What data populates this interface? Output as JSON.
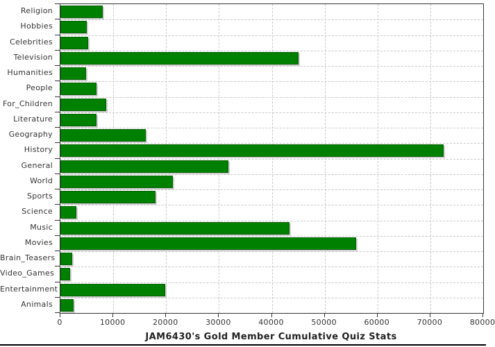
{
  "window": {
    "background": "#ffffff"
  },
  "colors": {
    "bar_fill": "#008000",
    "bar_border": "#065f06",
    "bar_shadow": "#cfcfcf",
    "grid": "#c9c9c9",
    "axis": "#333333",
    "tick_label_text": "#333333",
    "title_text": "#222222"
  },
  "chart_data": {
    "type": "bar",
    "orientation": "horizontal",
    "title": "JAM6430's Gold Member Cumulative Quiz Stats",
    "xlabel": "",
    "ylabel": "",
    "xlim": [
      0,
      80000
    ],
    "x_ticks": [
      0,
      10000,
      20000,
      30000,
      40000,
      50000,
      60000,
      70000,
      80000
    ],
    "grid": "dashed, vertical at every 10000, horizontal at category boundaries",
    "legend": "none",
    "categories": [
      "Religion",
      "Hobbies",
      "Celebrities",
      "Television",
      "Humanities",
      "People",
      "For_Children",
      "Literature",
      "Geography",
      "History",
      "General",
      "World",
      "Sports",
      "Science",
      "Music",
      "Movies",
      "Brain_Teasers",
      "Video_Games",
      "Entertainment",
      "Animals"
    ],
    "values": [
      8000,
      5000,
      5200,
      45100,
      4900,
      6800,
      8700,
      6800,
      16200,
      72500,
      31800,
      21300,
      18000,
      3000,
      43300,
      56000,
      2200,
      1800,
      19900,
      2500
    ]
  }
}
